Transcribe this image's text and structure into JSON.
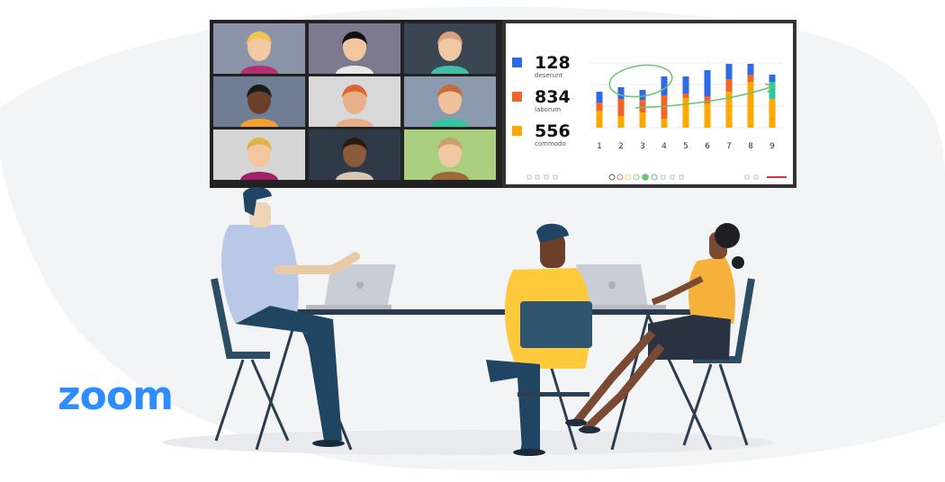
{
  "brand": {
    "logo_text": "zoom",
    "color": "#2D8CFF"
  },
  "colors": {
    "blue": "#2f6ae6",
    "orange": "#f0652a",
    "yellow": "#ffa800",
    "teal": "#2ec7a0",
    "annotation": "#6cc36c"
  },
  "video_grid": {
    "tiles": 9
  },
  "legend": [
    {
      "value": "128",
      "label": "deserunt",
      "color": "#2f6ae6"
    },
    {
      "value": "834",
      "label": "laborum",
      "color": "#f0652a"
    },
    {
      "value": "556",
      "label": "commodo",
      "color": "#ffa800"
    }
  ],
  "chart_data": {
    "type": "bar",
    "stacked": true,
    "categories": [
      "1",
      "2",
      "3",
      "4",
      "5",
      "6",
      "7",
      "8",
      "9"
    ],
    "series": [
      {
        "color": "#ffa800",
        "values": [
          19,
          13,
          17,
          10,
          33,
          27,
          40,
          51,
          32
        ]
      },
      {
        "color": "#f0652a",
        "values": [
          9,
          19,
          14,
          26,
          5,
          8,
          14,
          8,
          0
        ]
      },
      {
        "color": "#2ec7a0",
        "values": [
          0,
          0,
          0,
          0,
          0,
          0,
          0,
          0,
          19
        ]
      },
      {
        "color": "#2f6ae6",
        "values": [
          12,
          13,
          11,
          21,
          19,
          29,
          17,
          12,
          8
        ]
      }
    ],
    "grid": true,
    "annotations": [
      "circle around bars 2-4",
      "upward arrow to bar 9"
    ]
  },
  "toolbar": {
    "icons": [
      "pen-icon",
      "arrow-icon",
      "square-icon",
      "copy-icon",
      "color-black",
      "color-red",
      "color-yellow",
      "color-green-outline",
      "color-green",
      "color-blue",
      "eraser-icon",
      "undo-icon",
      "trash-icon",
      "mic-icon",
      "minus-icon"
    ]
  }
}
